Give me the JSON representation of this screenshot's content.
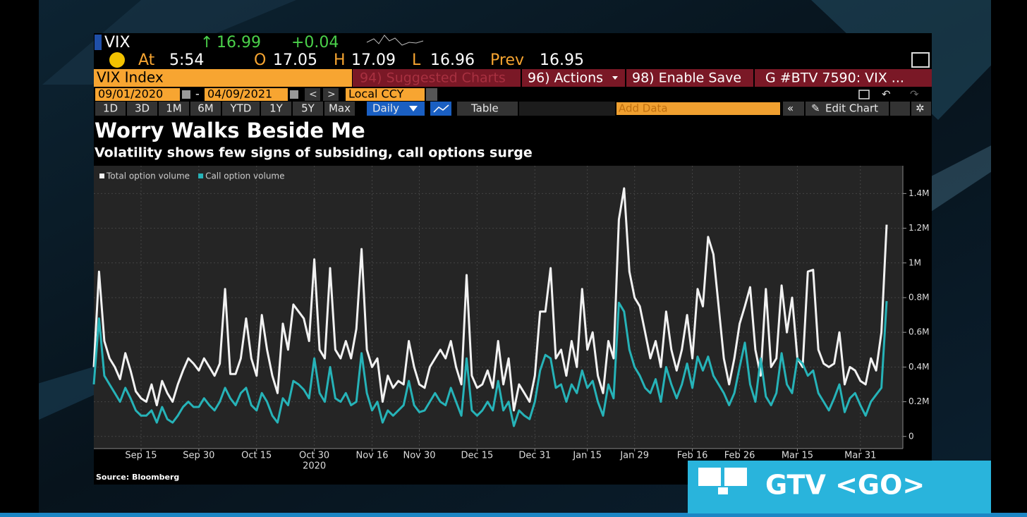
{
  "ui": {
    "ticker": "VIX",
    "last": "16.99",
    "change": "+0.04",
    "time_label": "At",
    "time": "5:54",
    "open_label": "O",
    "open": "17.05",
    "high_label": "H",
    "high": "17.09",
    "low_label": "L",
    "low": "16.96",
    "prev_label": "Prev",
    "prev": "16.95",
    "security": "VIX Index",
    "menu": [
      "94) Suggested Charts",
      "96) Actions",
      "98) Enable Save",
      "G #BTV 7590: VIX ..."
    ],
    "start_date": "09/01/2020",
    "end_date": "04/09/2021",
    "currency": "Local CCY",
    "periods": [
      "1D",
      "3D",
      "1M",
      "6M",
      "YTD",
      "1Y",
      "5Y",
      "Max"
    ],
    "frequency": "Daily",
    "table": "Table",
    "add_data": "Add Data",
    "edit_chart": "Edit Chart",
    "overlay": "GTV <GO>"
  },
  "chart_data": {
    "type": "line",
    "title": "Worry Walks Beside Me",
    "subtitle": "Volatility shows few signs of subsiding, call options surge",
    "source": "Source: Bloomberg",
    "year_label": "2020",
    "categories": [
      null,
      null,
      null,
      null,
      null,
      null,
      null,
      null,
      null,
      "Sep 15",
      null,
      null,
      null,
      null,
      null,
      null,
      null,
      null,
      null,
      null,
      "Sep 30",
      null,
      null,
      null,
      null,
      null,
      null,
      null,
      null,
      null,
      null,
      "Oct 15",
      null,
      null,
      null,
      null,
      null,
      null,
      null,
      null,
      null,
      null,
      "Oct 30",
      null,
      null,
      null,
      null,
      null,
      null,
      null,
      null,
      null,
      null,
      "Nov 16",
      null,
      null,
      null,
      null,
      null,
      null,
      null,
      null,
      "Nov 30",
      null,
      null,
      null,
      null,
      null,
      null,
      null,
      null,
      null,
      null,
      "Dec 15",
      null,
      null,
      null,
      null,
      null,
      null,
      null,
      null,
      null,
      null,
      "Dec 31",
      null,
      null,
      null,
      null,
      null,
      null,
      null,
      null,
      null,
      "Jan 15",
      null,
      null,
      null,
      null,
      null,
      null,
      null,
      null,
      "Jan 29",
      null,
      null,
      null,
      null,
      null,
      null,
      null,
      null,
      null,
      null,
      "Feb 16",
      null,
      null,
      null,
      null,
      null,
      null,
      null,
      null,
      "Feb 26",
      null,
      null,
      null,
      null,
      null,
      null,
      null,
      null,
      null,
      null,
      "Mar 15",
      null,
      null,
      null,
      null,
      null,
      null,
      null,
      null,
      null,
      null,
      null,
      "Mar 31",
      null,
      null,
      null,
      null,
      null
    ],
    "series": [
      {
        "name": "Total option volume",
        "color": "#f2f2f2",
        "values": [
          0.4,
          0.95,
          0.55,
          0.45,
          0.4,
          0.33,
          0.48,
          0.38,
          0.26,
          0.22,
          0.2,
          0.3,
          0.18,
          0.32,
          0.25,
          0.2,
          0.3,
          0.38,
          0.45,
          0.42,
          0.38,
          0.45,
          0.4,
          0.35,
          0.42,
          0.85,
          0.36,
          0.36,
          0.45,
          0.68,
          0.45,
          0.35,
          0.7,
          0.5,
          0.35,
          0.25,
          0.65,
          0.5,
          0.76,
          0.72,
          0.68,
          0.55,
          1.02,
          0.5,
          0.45,
          0.97,
          0.5,
          0.45,
          0.55,
          0.45,
          0.62,
          1.08,
          0.5,
          0.4,
          0.45,
          0.2,
          0.35,
          0.28,
          0.32,
          0.3,
          0.55,
          0.4,
          0.3,
          0.28,
          0.4,
          0.45,
          0.5,
          0.45,
          0.55,
          0.4,
          0.3,
          0.93,
          0.35,
          0.28,
          0.3,
          0.38,
          0.28,
          0.55,
          0.3,
          0.45,
          0.15,
          0.3,
          0.25,
          0.2,
          0.35,
          0.72,
          0.72,
          0.97,
          0.45,
          0.5,
          0.35,
          0.55,
          0.4,
          0.85,
          0.5,
          0.6,
          0.35,
          0.25,
          0.55,
          0.45,
          1.25,
          1.43,
          0.95,
          0.8,
          0.75,
          0.6,
          0.45,
          0.55,
          0.4,
          0.72,
          0.5,
          0.38,
          0.5,
          0.7,
          0.45,
          0.85,
          0.75,
          1.15,
          1.05,
          0.75,
          0.45,
          0.3,
          0.45,
          0.65,
          0.75,
          0.86,
          0.5,
          0.35,
          0.85,
          0.4,
          0.45,
          0.87,
          0.6,
          0.8,
          0.45,
          0.4,
          0.95,
          0.96,
          0.5,
          0.42,
          0.4,
          0.42,
          0.6,
          0.3,
          0.4,
          0.38,
          0.32,
          0.3,
          0.45,
          0.38,
          0.6,
          1.22
        ]
      },
      {
        "name": "Call option volume",
        "color": "#26b3b8",
        "values": [
          0.3,
          0.68,
          0.35,
          0.3,
          0.25,
          0.2,
          0.28,
          0.22,
          0.15,
          0.12,
          0.12,
          0.15,
          0.08,
          0.17,
          0.1,
          0.08,
          0.12,
          0.17,
          0.2,
          0.17,
          0.17,
          0.22,
          0.18,
          0.15,
          0.2,
          0.28,
          0.22,
          0.18,
          0.25,
          0.28,
          0.18,
          0.15,
          0.25,
          0.2,
          0.12,
          0.08,
          0.22,
          0.18,
          0.32,
          0.3,
          0.27,
          0.22,
          0.45,
          0.25,
          0.2,
          0.4,
          0.22,
          0.2,
          0.25,
          0.18,
          0.2,
          0.48,
          0.25,
          0.15,
          0.2,
          0.08,
          0.15,
          0.12,
          0.15,
          0.18,
          0.32,
          0.18,
          0.14,
          0.15,
          0.2,
          0.25,
          0.2,
          0.18,
          0.28,
          0.2,
          0.12,
          0.45,
          0.15,
          0.12,
          0.15,
          0.2,
          0.15,
          0.32,
          0.15,
          0.2,
          0.06,
          0.15,
          0.12,
          0.1,
          0.2,
          0.38,
          0.47,
          0.45,
          0.28,
          0.3,
          0.2,
          0.3,
          0.25,
          0.38,
          0.28,
          0.32,
          0.2,
          0.12,
          0.3,
          0.22,
          0.77,
          0.72,
          0.5,
          0.4,
          0.35,
          0.28,
          0.25,
          0.33,
          0.2,
          0.4,
          0.3,
          0.22,
          0.3,
          0.42,
          0.28,
          0.46,
          0.38,
          0.46,
          0.35,
          0.3,
          0.25,
          0.18,
          0.25,
          0.4,
          0.54,
          0.3,
          0.2,
          0.45,
          0.23,
          0.18,
          0.25,
          0.48,
          0.3,
          0.25,
          0.45,
          0.42,
          0.35,
          0.38,
          0.25,
          0.2,
          0.15,
          0.22,
          0.3,
          0.14,
          0.22,
          0.25,
          0.18,
          0.12,
          0.2,
          0.24,
          0.28,
          0.78
        ]
      }
    ],
    "ylim": [
      -0.07,
      1.56
    ],
    "yticks": [
      0,
      {
        "value": 0.2,
        "label": "0.2M"
      },
      {
        "value": 0.4,
        "label": "0.4M"
      },
      {
        "value": 0.6,
        "label": "0.6M"
      },
      {
        "value": 0.8,
        "label": "0.8M"
      },
      {
        "value": 1,
        "label": "1M"
      },
      {
        "value": 1.2,
        "label": "1.2M"
      },
      {
        "value": 1.4,
        "label": "1.4M"
      }
    ],
    "y_axis_side": "right",
    "grid": true,
    "legend": "top-left"
  }
}
